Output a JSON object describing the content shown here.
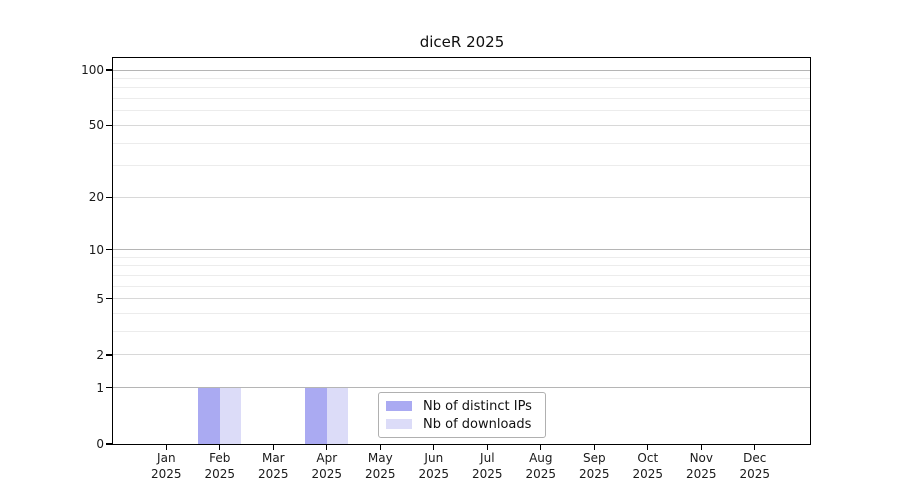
{
  "chart_data": {
    "type": "bar",
    "title": "diceR 2025",
    "categories": [
      "Jan",
      "Feb",
      "Mar",
      "Apr",
      "May",
      "Jun",
      "Jul",
      "Aug",
      "Sep",
      "Oct",
      "Nov",
      "Dec"
    ],
    "year": "2025",
    "series": [
      {
        "name": "Nb of distinct IPs",
        "color": "#aaaaf2",
        "values": [
          0,
          1,
          0,
          1,
          0,
          0,
          0,
          0,
          0,
          0,
          0,
          0
        ]
      },
      {
        "name": "Nb of downloads",
        "color": "#dcdcf8",
        "values": [
          0,
          1,
          0,
          1,
          0,
          0,
          0,
          0,
          0,
          0,
          0,
          0
        ]
      }
    ],
    "y_axis": {
      "scale": "log1p",
      "major_ticks": [
        0,
        1,
        2,
        5,
        10,
        20,
        50,
        100
      ],
      "minor_gridlines": [
        3,
        4,
        6,
        7,
        8,
        9,
        30,
        40,
        60,
        70,
        80,
        90
      ],
      "range": [
        0,
        116
      ]
    },
    "x_axis": {
      "label_lines": 2
    },
    "legend": {
      "position": "lower center"
    },
    "grid": true,
    "colors": {
      "background": "#ffffff",
      "grid_pow10": "#b5b5b5",
      "grid_major": "#d8d8d8",
      "grid_minor": "#ececec",
      "spine": "#000000",
      "text": "#1a1a1a"
    }
  }
}
